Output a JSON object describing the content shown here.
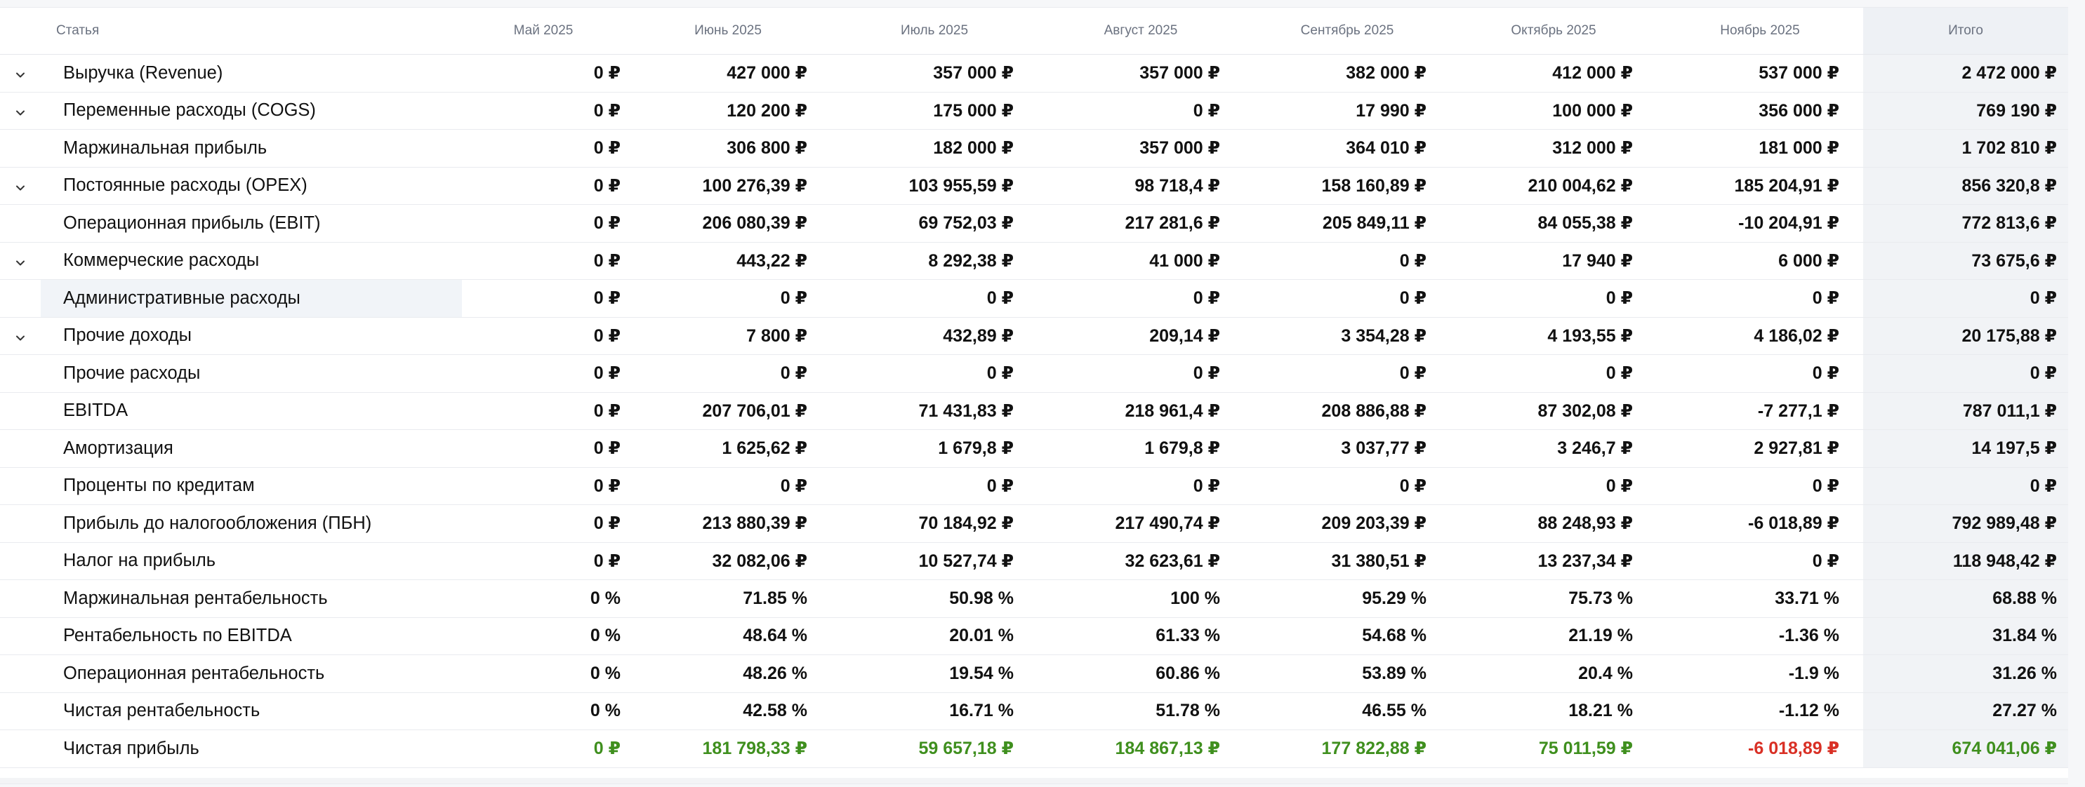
{
  "table": {
    "headers": {
      "article": "Статья",
      "months": [
        "Май 2025",
        "Июнь 2025",
        "Июль 2025",
        "Август 2025",
        "Сентябрь 2025",
        "Октябрь 2025",
        "Ноябрь 2025"
      ],
      "total": "Итого"
    },
    "rows": [
      {
        "name": "Выручка (Revenue)",
        "expandable": true,
        "values": [
          "0 ₽",
          "427 000 ₽",
          "357 000 ₽",
          "357 000 ₽",
          "382 000 ₽",
          "412 000 ₽",
          "537 000 ₽"
        ],
        "total": "2 472 000 ₽"
      },
      {
        "name": "Переменные расходы (COGS)",
        "expandable": true,
        "values": [
          "0 ₽",
          "120 200 ₽",
          "175 000 ₽",
          "0 ₽",
          "17 990 ₽",
          "100 000 ₽",
          "356 000 ₽"
        ],
        "total": "769 190 ₽"
      },
      {
        "name": "Маржинальная прибыль",
        "expandable": false,
        "values": [
          "0 ₽",
          "306 800 ₽",
          "182 000 ₽",
          "357 000 ₽",
          "364 010 ₽",
          "312 000 ₽",
          "181 000 ₽"
        ],
        "total": "1 702 810 ₽"
      },
      {
        "name": "Постоянные расходы (OPEX)",
        "expandable": true,
        "values": [
          "0 ₽",
          "100 276,39 ₽",
          "103 955,59 ₽",
          "98 718,4 ₽",
          "158 160,89 ₽",
          "210 004,62 ₽",
          "185 204,91 ₽"
        ],
        "total": "856 320,8 ₽"
      },
      {
        "name": "Операционная прибыль (EBIT)",
        "expandable": false,
        "values": [
          "0 ₽",
          "206 080,39 ₽",
          "69 752,03 ₽",
          "217 281,6 ₽",
          "205 849,11 ₽",
          "84 055,38 ₽",
          "-10 204,91 ₽"
        ],
        "total": "772 813,6 ₽"
      },
      {
        "name": "Коммерческие расходы",
        "expandable": true,
        "values": [
          "0 ₽",
          "443,22 ₽",
          "8 292,38 ₽",
          "41 000 ₽",
          "0 ₽",
          "17 940 ₽",
          "6 000 ₽"
        ],
        "total": "73 675,6 ₽"
      },
      {
        "name": "Административные расходы",
        "expandable": false,
        "highlighted": true,
        "values": [
          "0 ₽",
          "0 ₽",
          "0 ₽",
          "0 ₽",
          "0 ₽",
          "0 ₽",
          "0 ₽"
        ],
        "total": "0 ₽"
      },
      {
        "name": "Прочие доходы",
        "expandable": true,
        "values": [
          "0 ₽",
          "7 800 ₽",
          "432,89 ₽",
          "209,14 ₽",
          "3 354,28 ₽",
          "4 193,55 ₽",
          "4 186,02 ₽"
        ],
        "total": "20 175,88 ₽"
      },
      {
        "name": "Прочие расходы",
        "expandable": false,
        "values": [
          "0 ₽",
          "0 ₽",
          "0 ₽",
          "0 ₽",
          "0 ₽",
          "0 ₽",
          "0 ₽"
        ],
        "total": "0 ₽"
      },
      {
        "name": "EBITDA",
        "expandable": false,
        "values": [
          "0 ₽",
          "207 706,01 ₽",
          "71 431,83 ₽",
          "218 961,4 ₽",
          "208 886,88 ₽",
          "87 302,08 ₽",
          "-7 277,1 ₽"
        ],
        "total": "787 011,1 ₽"
      },
      {
        "name": "Амортизация",
        "expandable": false,
        "values": [
          "0 ₽",
          "1 625,62 ₽",
          "1 679,8 ₽",
          "1 679,8 ₽",
          "3 037,77 ₽",
          "3 246,7 ₽",
          "2 927,81 ₽"
        ],
        "total": "14 197,5 ₽"
      },
      {
        "name": "Проценты по кредитам",
        "expandable": false,
        "values": [
          "0 ₽",
          "0 ₽",
          "0 ₽",
          "0 ₽",
          "0 ₽",
          "0 ₽",
          "0 ₽"
        ],
        "total": "0 ₽"
      },
      {
        "name": "Прибыль до налогообложения (ПБН)",
        "expandable": false,
        "values": [
          "0 ₽",
          "213 880,39 ₽",
          "70 184,92 ₽",
          "217 490,74 ₽",
          "209 203,39 ₽",
          "88 248,93 ₽",
          "-6 018,89 ₽"
        ],
        "total": "792 989,48 ₽"
      },
      {
        "name": "Налог на прибыль",
        "expandable": false,
        "values": [
          "0 ₽",
          "32 082,06 ₽",
          "10 527,74 ₽",
          "32 623,61 ₽",
          "31 380,51 ₽",
          "13 237,34 ₽",
          "0 ₽"
        ],
        "total": "118 948,42 ₽"
      },
      {
        "name": "Маржинальная рентабельность",
        "expandable": false,
        "values": [
          "0 %",
          "71.85 %",
          "50.98 %",
          "100 %",
          "95.29 %",
          "75.73 %",
          "33.71 %"
        ],
        "total": "68.88 %"
      },
      {
        "name": "Рентабельность по EBITDA",
        "expandable": false,
        "values": [
          "0 %",
          "48.64 %",
          "20.01 %",
          "61.33 %",
          "54.68 %",
          "21.19 %",
          "-1.36 %"
        ],
        "total": "31.84 %"
      },
      {
        "name": "Операционная рентабельность",
        "expandable": false,
        "values": [
          "0 %",
          "48.26 %",
          "19.54 %",
          "60.86 %",
          "53.89 %",
          "20.4 %",
          "-1.9 %"
        ],
        "total": "31.26 %"
      },
      {
        "name": "Чистая рентабельность",
        "expandable": false,
        "values": [
          "0 %",
          "42.58 %",
          "16.71 %",
          "51.78 %",
          "46.55 %",
          "18.21 %",
          "-1.12 %"
        ],
        "total": "27.27 %"
      },
      {
        "name": "Чистая прибыль",
        "expandable": false,
        "net_profit": true,
        "values": [
          "0 ₽",
          "181 798,33 ₽",
          "59 657,18 ₽",
          "184 867,13 ₽",
          "177 822,88 ₽",
          "75 011,59 ₽",
          "-6 018,89 ₽"
        ],
        "total": "674 041,06 ₽"
      }
    ]
  },
  "colors": {
    "positive": "#3f8f1e",
    "negative": "#d93025",
    "total_column_bg": "#f1f3f6",
    "highlight_row_bg": "#f1f4f8"
  },
  "icons": {
    "expand": "chevron-down-icon"
  }
}
